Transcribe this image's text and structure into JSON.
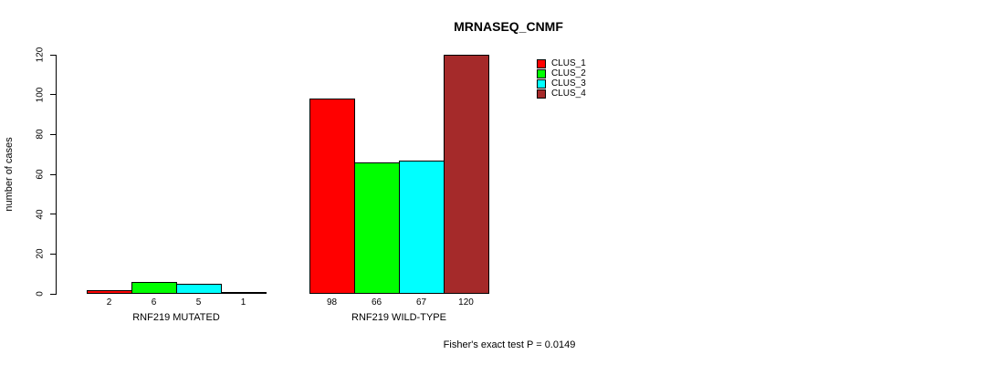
{
  "chart_data": {
    "type": "bar",
    "title": "MRNASEQ_CNMF",
    "xlabel": "",
    "ylabel": "number of cases",
    "ylim": [
      0,
      120
    ],
    "yticks": [
      0,
      20,
      40,
      60,
      80,
      100,
      120
    ],
    "grid": false,
    "legend_position": "top-right",
    "categories": [
      "RNF219 MUTATED",
      "RNF219 WILD-TYPE"
    ],
    "groups": [
      {
        "label": "RNF219 MUTATED",
        "values": [
          2,
          6,
          5,
          1
        ]
      },
      {
        "label": "RNF219 WILD-TYPE",
        "values": [
          98,
          66,
          67,
          120
        ]
      }
    ],
    "series": [
      {
        "name": "CLUS_1",
        "color": "#ff0000",
        "values": [
          2,
          98
        ]
      },
      {
        "name": "CLUS_2",
        "color": "#00ff00",
        "values": [
          6,
          66
        ]
      },
      {
        "name": "CLUS_3",
        "color": "#00ffff",
        "values": [
          5,
          67
        ]
      },
      {
        "name": "CLUS_4",
        "color": "#a52a2a",
        "values": [
          1,
          120
        ]
      }
    ],
    "annotation": "Fisher's exact test P = 0.0149"
  },
  "colors": {
    "axis": "#000000",
    "background": "#ffffff"
  }
}
